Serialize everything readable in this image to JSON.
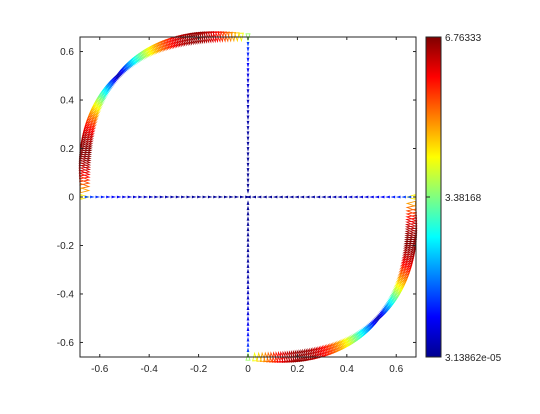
{
  "chart_data": {
    "type": "scatter",
    "xlim": [
      -0.68,
      0.68
    ],
    "ylim": [
      -0.66,
      0.66
    ],
    "x_ticks": [
      -0.6,
      -0.4,
      -0.2,
      0,
      0.2,
      0.4,
      0.6
    ],
    "y_ticks": [
      -0.6,
      -0.4,
      -0.2,
      0,
      0.2,
      0.4,
      0.6
    ],
    "x_tick_labels": [
      "-0.6",
      "-0.4",
      "-0.2",
      "0",
      "0.2",
      "0.4",
      "0.6"
    ],
    "y_tick_labels": [
      "-0.6",
      "-0.4",
      "-0.2",
      "0",
      "0.2",
      "0.4",
      "0.6"
    ],
    "grid": false,
    "colormap": "jet",
    "marker": "triangle (quiver-like glyphs along the curve)",
    "curve": "closed figure-eight loop passing through the origin, with lobes in the upper-left and lower-right quadrants",
    "x": [
      -0.62,
      -0.55,
      -0.27,
      -0.2,
      0.0,
      0.2,
      0.27,
      0.55,
      0.62
    ],
    "y": [
      0.2,
      0.3,
      0.63,
      0.6,
      0.0,
      -0.6,
      -0.63,
      -0.3,
      -0.2
    ],
    "peak_locations": [
      {
        "x": -0.21,
        "y": 0.61,
        "value": 6.76333
      },
      {
        "x": -0.63,
        "y": 0.18,
        "value": 6.76333
      },
      {
        "x": 0.21,
        "y": -0.61,
        "value": 6.76333
      },
      {
        "x": 0.63,
        "y": -0.18,
        "value": 6.76333
      }
    ],
    "colorbar": {
      "min": 3.13862e-05,
      "mid": 3.38168,
      "max": 6.76333,
      "tick_labels": [
        "3.13862e-05",
        "3.38168",
        "6.76333"
      ]
    }
  },
  "colors": {
    "axes_edge": "#262626",
    "tick_text": "#262626",
    "background": "#ffffff"
  }
}
